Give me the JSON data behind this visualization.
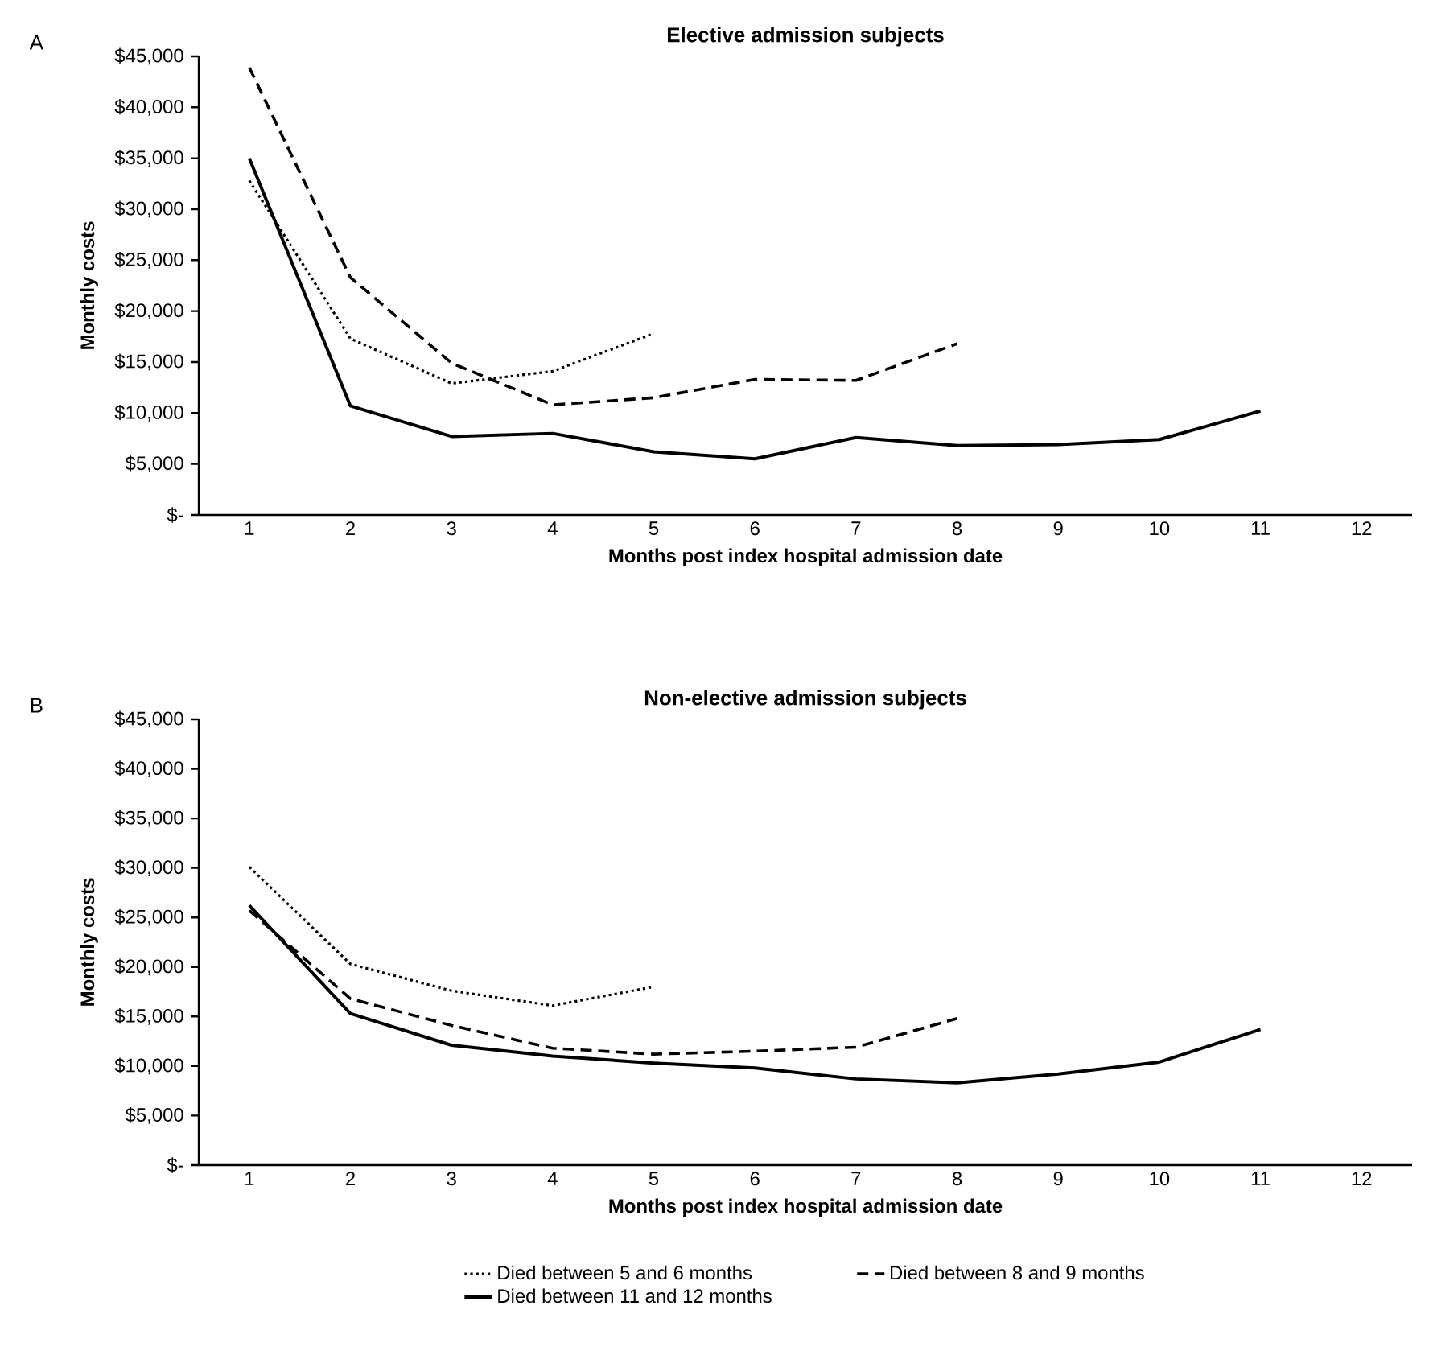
{
  "chart_data": [
    {
      "type": "line",
      "title": "Elective admission subjects",
      "xlabel": "Months post index hospital admission date",
      "ylabel": "Monthly costs",
      "annotations": [
        "A"
      ],
      "categories": [
        "1",
        "2",
        "3",
        "4",
        "5",
        "6",
        "7",
        "8",
        "9",
        "10",
        "11",
        "12"
      ],
      "ylim": [
        0,
        45000
      ],
      "yticks": [
        {
          "value": 0,
          "label": "$-"
        },
        {
          "value": 5000,
          "label": "$5,000"
        },
        {
          "value": 10000,
          "label": "$10,000"
        },
        {
          "value": 15000,
          "label": "$15,000"
        },
        {
          "value": 20000,
          "label": "$20,000"
        },
        {
          "value": 25000,
          "label": "$25,000"
        },
        {
          "value": 30000,
          "label": "$30,000"
        },
        {
          "value": 35000,
          "label": "$35,000"
        },
        {
          "value": 40000,
          "label": "$40,000"
        },
        {
          "value": 45000,
          "label": "$45,000"
        }
      ],
      "legend": false,
      "series": [
        {
          "color": "#000000",
          "line_style": "dotted",
          "values": [
            32800,
            17300,
            12900,
            14100,
            17800,
            null,
            null,
            null,
            null,
            null,
            null,
            null
          ]
        },
        {
          "color": "#000000",
          "line_style": "dashed",
          "values": [
            43900,
            23300,
            14900,
            10800,
            11500,
            13300,
            13200,
            16800,
            null,
            null,
            null,
            null
          ]
        },
        {
          "color": "#000000",
          "line_style": "solid",
          "values": [
            35000,
            10700,
            7700,
            8000,
            6200,
            5500,
            7600,
            6800,
            6900,
            7400,
            10200,
            null
          ]
        }
      ]
    },
    {
      "type": "line",
      "title": "Non-elective admission subjects",
      "xlabel": "Months post index hospital admission date",
      "ylabel": "Monthly costs",
      "annotations": [
        "B"
      ],
      "categories": [
        "1",
        "2",
        "3",
        "4",
        "5",
        "6",
        "7",
        "8",
        "9",
        "10",
        "11",
        "12"
      ],
      "ylim": [
        0,
        45000
      ],
      "yticks": [
        {
          "value": 0,
          "label": "$-"
        },
        {
          "value": 5000,
          "label": "$5,000"
        },
        {
          "value": 10000,
          "label": "$10,000"
        },
        {
          "value": 15000,
          "label": "$15,000"
        },
        {
          "value": 20000,
          "label": "$20,000"
        },
        {
          "value": 25000,
          "label": "$25,000"
        },
        {
          "value": 30000,
          "label": "$30,000"
        },
        {
          "value": 35000,
          "label": "$35,000"
        },
        {
          "value": 40000,
          "label": "$40,000"
        },
        {
          "value": 45000,
          "label": "$45,000"
        }
      ],
      "legend": "bottom",
      "series": [
        {
          "name": "Died between 5 and 6 months",
          "color": "#000000",
          "line_style": "dotted",
          "values": [
            30100,
            20300,
            17600,
            16100,
            18000,
            null,
            null,
            null,
            null,
            null,
            null,
            null
          ]
        },
        {
          "name": "Died between 8 and 9 months",
          "color": "#000000",
          "line_style": "dashed",
          "values": [
            25700,
            16800,
            14100,
            11800,
            11200,
            11500,
            11900,
            14800,
            null,
            null,
            null,
            null
          ]
        },
        {
          "name": "Died between 11 and 12 months",
          "color": "#000000",
          "line_style": "solid",
          "values": [
            26200,
            15300,
            12100,
            11000,
            10300,
            9800,
            8700,
            8300,
            9200,
            10400,
            13700,
            null
          ]
        }
      ]
    }
  ]
}
